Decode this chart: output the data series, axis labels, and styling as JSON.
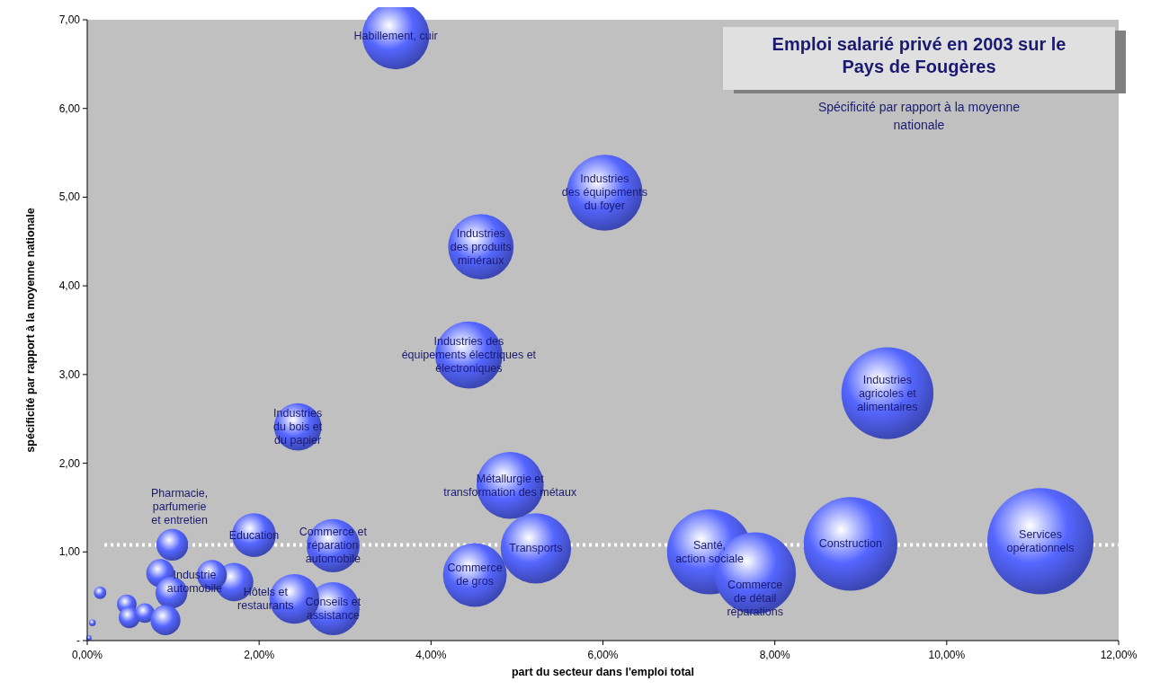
{
  "chart_data": {
    "type": "bubble",
    "title": "Emploi salarié privé en 2003 sur le Pays de Fougères",
    "subtitle": "Spécificité par rapport à la moyenne nationale",
    "xlabel": "part du secteur dans l'emploi total",
    "ylabel": "spécificité par rapport à la moyenne nationale",
    "xlim": [
      0,
      12
    ],
    "ylim": [
      0,
      7
    ],
    "xticks": [
      {
        "value": 0,
        "label": "0,00%"
      },
      {
        "value": 2,
        "label": "2,00%"
      },
      {
        "value": 4,
        "label": "4,00%"
      },
      {
        "value": 6,
        "label": "6,00%"
      },
      {
        "value": 8,
        "label": "8,00%"
      },
      {
        "value": 10,
        "label": "10,00%"
      },
      {
        "value": 12,
        "label": "12,00%"
      }
    ],
    "yticks": [
      {
        "value": 0,
        "label": "-"
      },
      {
        "value": 1,
        "label": "1,00"
      },
      {
        "value": 2,
        "label": "2,00"
      },
      {
        "value": 3,
        "label": "3,00"
      },
      {
        "value": 4,
        "label": "4,00"
      },
      {
        "value": 5,
        "label": "5,00"
      },
      {
        "value": 6,
        "label": "6,00"
      },
      {
        "value": 7,
        "label": "7,00"
      }
    ],
    "grid": false,
    "ref_lines": [
      {
        "axis": "y",
        "value": 1.08,
        "color": "#ffffff",
        "line_style": "dotted"
      }
    ],
    "series": [
      {
        "color": "#5566ff",
        "x": [
          11.09,
          8.88,
          9.31,
          7.24,
          7.77,
          6.02,
          5.22,
          3.59,
          4.44,
          4.92,
          4.58,
          4.51,
          2.86,
          2.86,
          2.41,
          2.45,
          1.94,
          1.71,
          1.45,
          0.99,
          0.85,
          0.98,
          0.15,
          0.46,
          0.49,
          0.67,
          0.91,
          0.06,
          0.02
        ],
        "values": [
          1.12,
          1.09,
          2.79,
          1.0,
          0.76,
          5.05,
          1.04,
          6.82,
          3.22,
          1.75,
          4.44,
          0.74,
          1.07,
          0.36,
          0.47,
          2.41,
          1.19,
          0.66,
          0.74,
          1.08,
          0.76,
          0.54,
          0.54,
          0.41,
          0.26,
          0.31,
          0.23,
          0.2,
          0.03
        ],
        "sizes": [
          1,
          0.78,
          0.75,
          0.64,
          0.59,
          0.51,
          0.44,
          0.4,
          0.4,
          0.4,
          0.38,
          0.36,
          0.25,
          0.25,
          0.22,
          0.2,
          0.17,
          0.13,
          0.08,
          0.09,
          0.07,
          0.09,
          0.014,
          0.034,
          0.04,
          0.034,
          0.08,
          0.004,
          0.0025
        ],
        "value_labels": [
          "Services\nopérationnels",
          "Construction",
          "Industries\nagricoles et\nalimentaires",
          "Santé,\naction sociale",
          "Commerce\nde détail\nréparations",
          "Industries\ndes équipements\ndu foyer",
          "Transports",
          "Habillement, cuir",
          "Industries des\néquipements électriques et\nélectroniques",
          "Métallurgie et\ntransformation des métaux",
          "Industries\ndes produits\nminéraux",
          "Commerce\nde gros",
          "Commerce et\nréparation\nautomobile",
          "Conseils et\nassistance",
          "Hôtels et\nrestaurants",
          "Industries\ndu bois et\ndu papier",
          "Education",
          "Industrie\nautomobile",
          null,
          "Pharmacie,\nparfumerie\net entretien",
          null,
          null,
          null,
          null,
          null,
          null,
          null,
          null,
          null
        ]
      }
    ]
  }
}
